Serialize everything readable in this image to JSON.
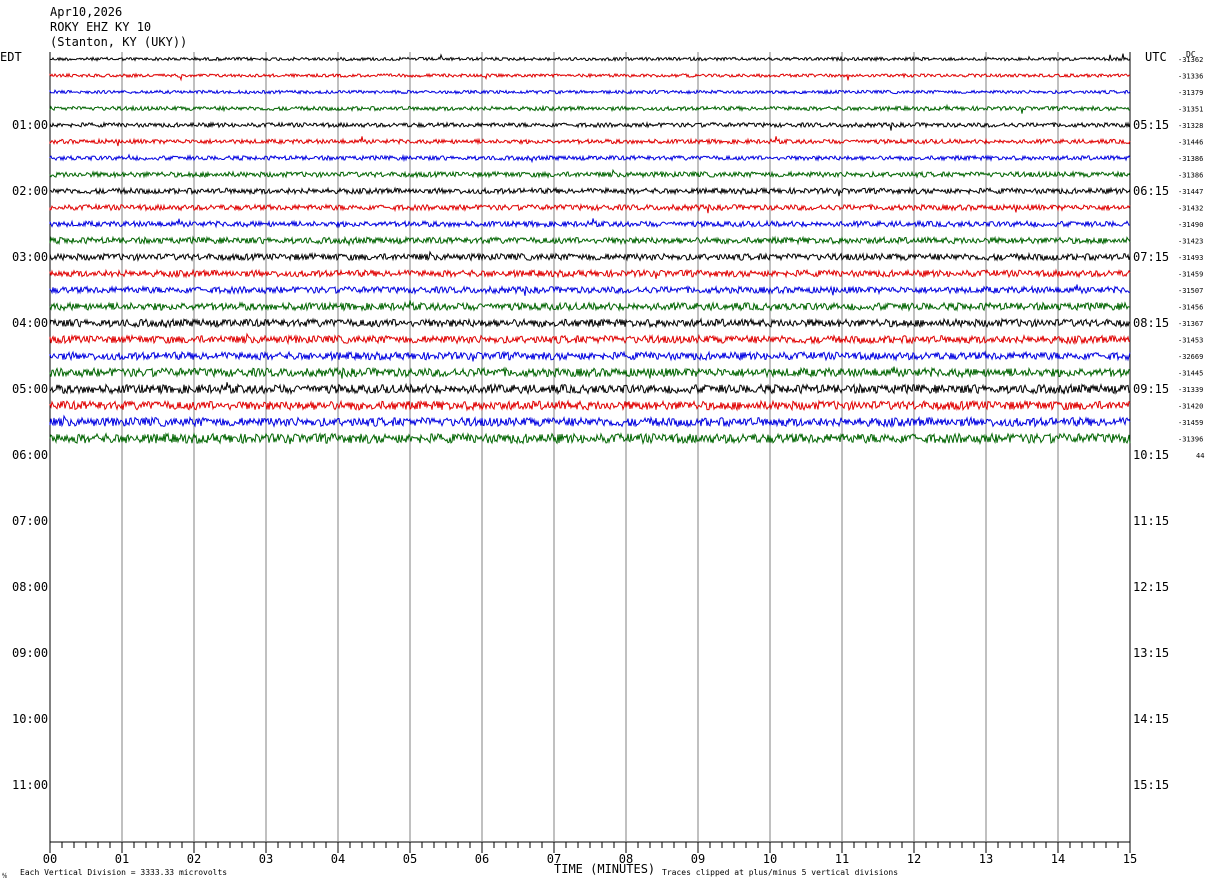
{
  "header": {
    "date": "Apr10,2026",
    "station": "ROKY EHZ KY 10",
    "location": "(Stanton, KY (UKY))"
  },
  "axes": {
    "left_zone": "EDT",
    "right_zone": "UTC",
    "dc_label": "DC",
    "xlabel": "TIME (MINUTES)",
    "footer_left": "Each Vertical Division = 3333.33 microvolts",
    "footer_right": "Traces clipped at plus/minus 5 vertical divisions",
    "footer_marker": "⅍"
  },
  "chart_data": {
    "type": "line",
    "title": "ROKY EHZ KY 10",
    "xlabel": "TIME (MINUTES)",
    "x_ticks": [
      "00",
      "01",
      "02",
      "03",
      "04",
      "05",
      "06",
      "07",
      "08",
      "09",
      "10",
      "11",
      "12",
      "13",
      "14",
      "15"
    ],
    "xlim": [
      0,
      15
    ],
    "left_hour_labels": [
      "01:00",
      "02:00",
      "03:00",
      "04:00",
      "05:00",
      "06:00",
      "07:00",
      "08:00",
      "09:00",
      "10:00",
      "11:00"
    ],
    "right_hour_labels": [
      "05:15",
      "06:15",
      "07:15",
      "08:15",
      "09:15",
      "10:15",
      "11:15",
      "12:15",
      "13:15",
      "14:15",
      "15:15"
    ],
    "trace_colors": [
      "#000000",
      "#e00000",
      "#0000e0",
      "#006400"
    ],
    "traces_per_hour": 4,
    "trace_count": 24,
    "dc_offsets": [
      "-31362",
      "-31336",
      "-31379",
      "-31351",
      "-31328",
      "-31446",
      "-31386",
      "-31386",
      "-31447",
      "-31432",
      "-31490",
      "-31423",
      "-31493",
      "-31459",
      "-31507",
      "-31456",
      "-31367",
      "-31453",
      "-32669",
      "-31445",
      "-31339",
      "-31420",
      "-31459",
      "-31396"
    ],
    "last_dc_value": "44",
    "grid": true,
    "vertical_division_microvolts": 3333.33
  }
}
